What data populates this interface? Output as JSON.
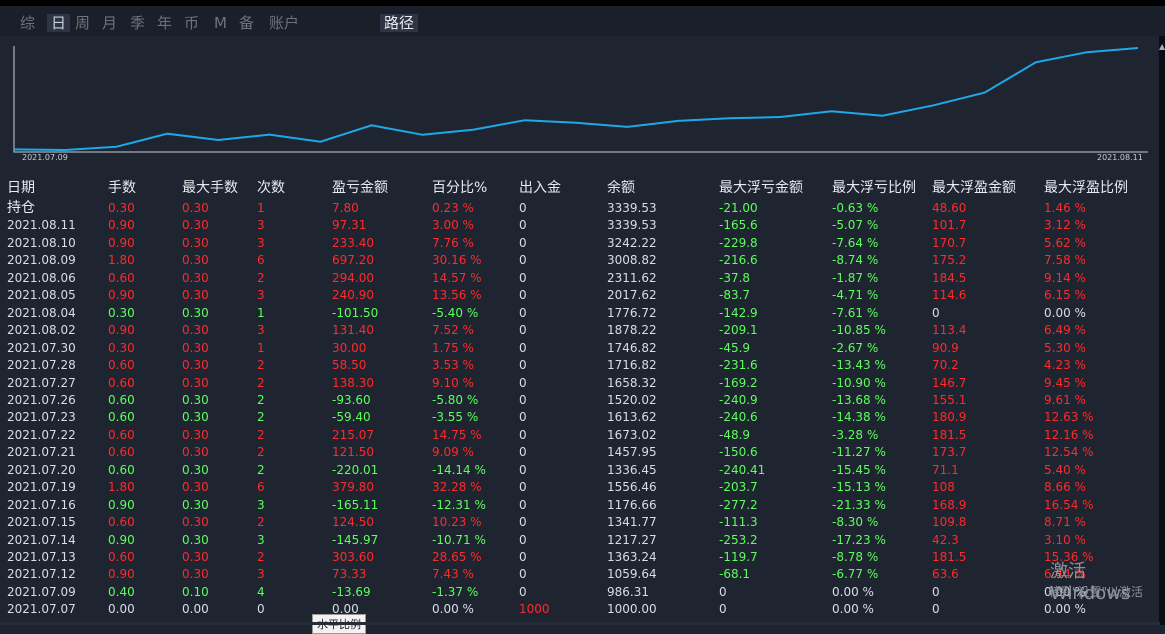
{
  "tabs": [
    {
      "label": "综",
      "active": false
    },
    {
      "label": "日",
      "active": true
    },
    {
      "label": "周",
      "active": false
    },
    {
      "label": "月",
      "active": false
    },
    {
      "label": "季",
      "active": false
    },
    {
      "label": "年",
      "active": false
    },
    {
      "label": "币",
      "active": false
    },
    {
      "label": "M",
      "active": false
    },
    {
      "label": "备",
      "active": false
    },
    {
      "label": "账户",
      "active": false
    },
    {
      "label": "路径",
      "active": false
    }
  ],
  "chart_data": {
    "type": "line",
    "x_start_label": "2021.07.09",
    "x_end_label": "2021.08.11",
    "x": [
      "2021.07.07",
      "2021.07.09",
      "2021.07.12",
      "2021.07.13",
      "2021.07.14",
      "2021.07.15",
      "2021.07.16",
      "2021.07.19",
      "2021.07.20",
      "2021.07.21",
      "2021.07.22",
      "2021.07.23",
      "2021.07.26",
      "2021.07.27",
      "2021.07.28",
      "2021.07.30",
      "2021.08.02",
      "2021.08.04",
      "2021.08.05",
      "2021.08.06",
      "2021.08.09",
      "2021.08.10",
      "2021.08.11"
    ],
    "values": [
      1000.0,
      986.31,
      1059.64,
      1363.24,
      1217.27,
      1341.77,
      1176.66,
      1556.46,
      1336.45,
      1457.95,
      1673.02,
      1613.62,
      1520.02,
      1658.32,
      1716.82,
      1746.82,
      1878.22,
      1776.72,
      2017.62,
      2311.62,
      3008.82,
      3242.22,
      3339.53
    ],
    "color": "#1fa8e8"
  },
  "table": {
    "headers": [
      "日期",
      "手数",
      "最大手数",
      "次数",
      "盈亏金额",
      "百分比%",
      "出入金",
      "余额",
      "最大浮亏金额",
      "最大浮亏比例",
      "最大浮盈金额",
      "最大浮盈比例"
    ],
    "rows": [
      {
        "c": [
          "持仓",
          "0.30",
          "0.30",
          "1",
          "7.80",
          "0.23 %",
          "0",
          "3339.53",
          "-21.00",
          "-0.63 %",
          "48.60",
          "1.46 %"
        ],
        "s": [
          "w",
          "r",
          "r",
          "r",
          "r",
          "r",
          "g0",
          "g0",
          "g",
          "g",
          "r",
          "r"
        ]
      },
      {
        "c": [
          "2021.08.11",
          "0.90",
          "0.30",
          "3",
          "97.31",
          "3.00 %",
          "0",
          "3339.53",
          "-165.6",
          "-5.07 %",
          "101.7",
          "3.12 %"
        ],
        "s": [
          "g0",
          "r",
          "r",
          "r",
          "r",
          "r",
          "g0",
          "g0",
          "g",
          "g",
          "r",
          "r"
        ]
      },
      {
        "c": [
          "2021.08.10",
          "0.90",
          "0.30",
          "3",
          "233.40",
          "7.76 %",
          "0",
          "3242.22",
          "-229.8",
          "-7.64 %",
          "170.7",
          "5.62 %"
        ],
        "s": [
          "g0",
          "r",
          "r",
          "r",
          "r",
          "r",
          "g0",
          "g0",
          "g",
          "g",
          "r",
          "r"
        ]
      },
      {
        "c": [
          "2021.08.09",
          "1.80",
          "0.30",
          "6",
          "697.20",
          "30.16 %",
          "0",
          "3008.82",
          "-216.6",
          "-8.74 %",
          "175.2",
          "7.58 %"
        ],
        "s": [
          "g0",
          "r",
          "r",
          "r",
          "r",
          "r",
          "g0",
          "g0",
          "g",
          "g",
          "r",
          "r"
        ]
      },
      {
        "c": [
          "2021.08.06",
          "0.60",
          "0.30",
          "2",
          "294.00",
          "14.57 %",
          "0",
          "2311.62",
          "-37.8",
          "-1.87 %",
          "184.5",
          "9.14 %"
        ],
        "s": [
          "g0",
          "r",
          "r",
          "r",
          "r",
          "r",
          "g0",
          "g0",
          "g",
          "g",
          "r",
          "r"
        ]
      },
      {
        "c": [
          "2021.08.05",
          "0.90",
          "0.30",
          "3",
          "240.90",
          "13.56 %",
          "0",
          "2017.62",
          "-83.7",
          "-4.71 %",
          "114.6",
          "6.15 %"
        ],
        "s": [
          "g0",
          "r",
          "r",
          "r",
          "r",
          "r",
          "g0",
          "g0",
          "g",
          "g",
          "r",
          "r"
        ]
      },
      {
        "c": [
          "2021.08.04",
          "0.30",
          "0.30",
          "1",
          "-101.50",
          "-5.40 %",
          "0",
          "1776.72",
          "-142.9",
          "-7.61 %",
          "0",
          "0.00 %"
        ],
        "s": [
          "g0",
          "g",
          "g",
          "g",
          "g",
          "g",
          "g0",
          "g0",
          "g",
          "g",
          "g0",
          "g0"
        ]
      },
      {
        "c": [
          "2021.08.02",
          "0.90",
          "0.30",
          "3",
          "131.40",
          "7.52 %",
          "0",
          "1878.22",
          "-209.1",
          "-10.85 %",
          "113.4",
          "6.49 %"
        ],
        "s": [
          "g0",
          "r",
          "r",
          "r",
          "r",
          "r",
          "g0",
          "g0",
          "g",
          "g",
          "r",
          "r"
        ]
      },
      {
        "c": [
          "2021.07.30",
          "0.30",
          "0.30",
          "1",
          "30.00",
          "1.75 %",
          "0",
          "1746.82",
          "-45.9",
          "-2.67 %",
          "90.9",
          "5.30 %"
        ],
        "s": [
          "g0",
          "r",
          "r",
          "r",
          "r",
          "r",
          "g0",
          "g0",
          "g",
          "g",
          "r",
          "r"
        ]
      },
      {
        "c": [
          "2021.07.28",
          "0.60",
          "0.30",
          "2",
          "58.50",
          "3.53 %",
          "0",
          "1716.82",
          "-231.6",
          "-13.43 %",
          "70.2",
          "4.23 %"
        ],
        "s": [
          "g0",
          "r",
          "r",
          "r",
          "r",
          "r",
          "g0",
          "g0",
          "g",
          "g",
          "r",
          "r"
        ]
      },
      {
        "c": [
          "2021.07.27",
          "0.60",
          "0.30",
          "2",
          "138.30",
          "9.10 %",
          "0",
          "1658.32",
          "-169.2",
          "-10.90 %",
          "146.7",
          "9.45 %"
        ],
        "s": [
          "g0",
          "r",
          "r",
          "r",
          "r",
          "r",
          "g0",
          "g0",
          "g",
          "g",
          "r",
          "r"
        ]
      },
      {
        "c": [
          "2021.07.26",
          "0.60",
          "0.30",
          "2",
          "-93.60",
          "-5.80 %",
          "0",
          "1520.02",
          "-240.9",
          "-13.68 %",
          "155.1",
          "9.61 %"
        ],
        "s": [
          "g0",
          "g",
          "g",
          "g",
          "g",
          "g",
          "g0",
          "g0",
          "g",
          "g",
          "r",
          "r"
        ]
      },
      {
        "c": [
          "2021.07.23",
          "0.60",
          "0.30",
          "2",
          "-59.40",
          "-3.55 %",
          "0",
          "1613.62",
          "-240.6",
          "-14.38 %",
          "180.9",
          "12.63 %"
        ],
        "s": [
          "g0",
          "g",
          "g",
          "g",
          "g",
          "g",
          "g0",
          "g0",
          "g",
          "g",
          "r",
          "r"
        ]
      },
      {
        "c": [
          "2021.07.22",
          "0.60",
          "0.30",
          "2",
          "215.07",
          "14.75 %",
          "0",
          "1673.02",
          "-48.9",
          "-3.28 %",
          "181.5",
          "12.16 %"
        ],
        "s": [
          "g0",
          "r",
          "r",
          "r",
          "r",
          "r",
          "g0",
          "g0",
          "g",
          "g",
          "r",
          "r"
        ]
      },
      {
        "c": [
          "2021.07.21",
          "0.60",
          "0.30",
          "2",
          "121.50",
          "9.09 %",
          "0",
          "1457.95",
          "-150.6",
          "-11.27 %",
          "173.7",
          "12.54 %"
        ],
        "s": [
          "g0",
          "r",
          "r",
          "r",
          "r",
          "r",
          "g0",
          "g0",
          "g",
          "g",
          "r",
          "r"
        ]
      },
      {
        "c": [
          "2021.07.20",
          "0.60",
          "0.30",
          "2",
          "-220.01",
          "-14.14 %",
          "0",
          "1336.45",
          "-240.41",
          "-15.45 %",
          "71.1",
          "5.40 %"
        ],
        "s": [
          "g0",
          "g",
          "g",
          "g",
          "g",
          "g",
          "g0",
          "g0",
          "g",
          "g",
          "r",
          "r"
        ]
      },
      {
        "c": [
          "2021.07.19",
          "1.80",
          "0.30",
          "6",
          "379.80",
          "32.28 %",
          "0",
          "1556.46",
          "-203.7",
          "-15.13 %",
          "108",
          "8.66 %"
        ],
        "s": [
          "g0",
          "r",
          "r",
          "r",
          "r",
          "r",
          "g0",
          "g0",
          "g",
          "g",
          "r",
          "r"
        ]
      },
      {
        "c": [
          "2021.07.16",
          "0.90",
          "0.30",
          "3",
          "-165.11",
          "-12.31 %",
          "0",
          "1176.66",
          "-277.2",
          "-21.33 %",
          "168.9",
          "16.54 %"
        ],
        "s": [
          "g0",
          "g",
          "g",
          "g",
          "g",
          "g",
          "g0",
          "g0",
          "g",
          "g",
          "r",
          "r"
        ]
      },
      {
        "c": [
          "2021.07.15",
          "0.60",
          "0.30",
          "2",
          "124.50",
          "10.23 %",
          "0",
          "1341.77",
          "-111.3",
          "-8.30 %",
          "109.8",
          "8.71 %"
        ],
        "s": [
          "g0",
          "r",
          "r",
          "r",
          "r",
          "r",
          "g0",
          "g0",
          "g",
          "g",
          "r",
          "r"
        ]
      },
      {
        "c": [
          "2021.07.14",
          "0.90",
          "0.30",
          "3",
          "-145.97",
          "-10.71 %",
          "0",
          "1217.27",
          "-253.2",
          "-17.23 %",
          "42.3",
          "3.10 %"
        ],
        "s": [
          "g0",
          "g",
          "g",
          "g",
          "g",
          "g",
          "g0",
          "g0",
          "g",
          "g",
          "r",
          "r"
        ]
      },
      {
        "c": [
          "2021.07.13",
          "0.60",
          "0.30",
          "2",
          "303.60",
          "28.65 %",
          "0",
          "1363.24",
          "-119.7",
          "-8.78 %",
          "181.5",
          "15.36 %"
        ],
        "s": [
          "g0",
          "r",
          "r",
          "r",
          "r",
          "r",
          "g0",
          "g0",
          "g",
          "g",
          "r",
          "r"
        ]
      },
      {
        "c": [
          "2021.07.12",
          "0.90",
          "0.30",
          "3",
          "73.33",
          "7.43 %",
          "0",
          "1059.64",
          "-68.1",
          "-6.77 %",
          "63.6",
          "6.44 %"
        ],
        "s": [
          "g0",
          "r",
          "r",
          "r",
          "r",
          "r",
          "g0",
          "g0",
          "g",
          "g",
          "r",
          "r"
        ]
      },
      {
        "c": [
          "2021.07.09",
          "0.40",
          "0.10",
          "4",
          "-13.69",
          "-1.37 %",
          "0",
          "986.31",
          "0",
          "0.00 %",
          "0",
          "0.00 %"
        ],
        "s": [
          "g0",
          "g",
          "g",
          "g",
          "g",
          "g",
          "g0",
          "g0",
          "g0",
          "g0",
          "g0",
          "g0"
        ]
      },
      {
        "c": [
          "2021.07.07",
          "0.00",
          "0.00",
          "0",
          "0.00",
          "0.00 %",
          "1000",
          "1000.00",
          "0",
          "0.00 %",
          "0",
          "0.00 %"
        ],
        "s": [
          "g0",
          "g0",
          "g0",
          "g0",
          "g0",
          "g0",
          "r",
          "g0",
          "g0",
          "g0",
          "g0",
          "g0"
        ]
      }
    ]
  },
  "watermark": {
    "line1": "激活 Windows",
    "line2": "转到\"设置\"以激活"
  },
  "tooltip": "水平比例"
}
